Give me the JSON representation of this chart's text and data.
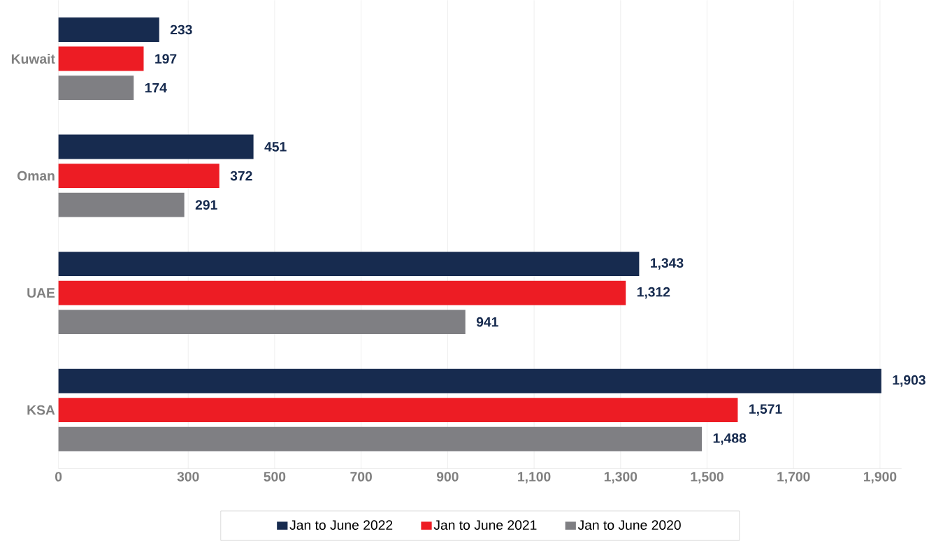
{
  "chart_data": {
    "type": "bar",
    "orientation": "horizontal",
    "categories": [
      "Kuwait",
      "Oman",
      "UAE",
      "KSA"
    ],
    "series": [
      {
        "name": "Jan to June 2022",
        "color": "#172b4f",
        "values": [
          233,
          451,
          1343,
          1903
        ],
        "value_labels": [
          "233",
          "451",
          "1,343",
          "1,903"
        ]
      },
      {
        "name": "Jan to June 2021",
        "color": "#ed1c24",
        "values": [
          197,
          372,
          1312,
          1571
        ],
        "value_labels": [
          "197",
          "372",
          "1,312",
          "1,571"
        ]
      },
      {
        "name": "Jan to June 2020",
        "color": "#7f7f83",
        "values": [
          174,
          291,
          941,
          1488
        ],
        "value_labels": [
          "174",
          "291",
          "941",
          "1,488"
        ]
      }
    ],
    "xlim": [
      0,
      1950
    ],
    "xticks": [
      0,
      300,
      500,
      700,
      900,
      {
        "value": 1100,
        "label": "1,100"
      },
      {
        "value": 1300,
        "label": "1,300"
      },
      {
        "value": 1500,
        "label": "1,500"
      },
      {
        "value": 1700,
        "label": "1,700"
      },
      {
        "value": 1900,
        "label": "1,900"
      }
    ],
    "grid": "x",
    "legend": "bottom"
  }
}
